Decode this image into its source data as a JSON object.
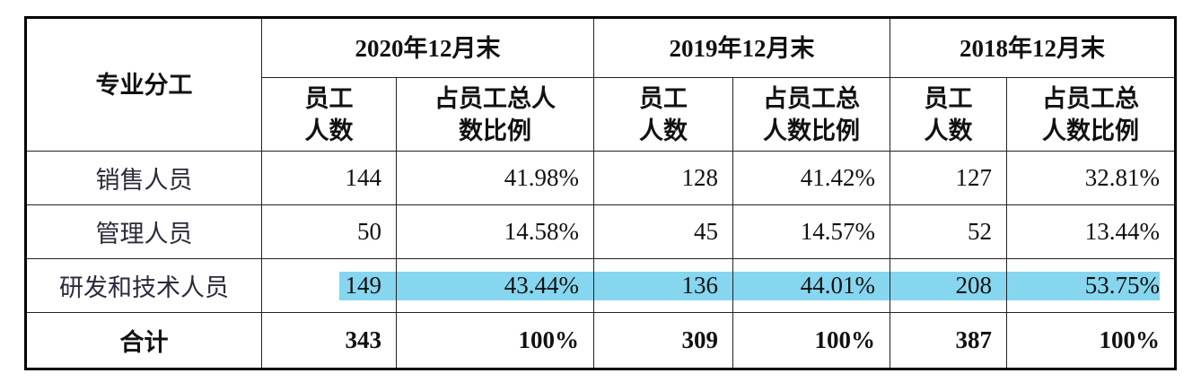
{
  "table": {
    "corner": "专业分工",
    "groups": [
      "2020年12月末",
      "2019年12月末",
      "2018年12月末"
    ],
    "subheaders": [
      [
        "员工",
        "人数"
      ],
      [
        "占员工总人",
        "数比例"
      ],
      [
        "员工",
        "人数"
      ],
      [
        "占员工总",
        "人数比例"
      ],
      [
        "员工",
        "人数"
      ],
      [
        "占员工总",
        "人数比例"
      ]
    ],
    "rows": [
      [
        "销售人员",
        "144",
        "41.98%",
        "128",
        "41.42%",
        "127",
        "32.81%"
      ],
      [
        "管理人员",
        "50",
        "14.58%",
        "45",
        "14.57%",
        "52",
        "13.44%"
      ],
      [
        "研发和技术人员",
        "149",
        "43.44%",
        "136",
        "44.01%",
        "208",
        "53.75%"
      ],
      [
        "合计",
        "343",
        "100%",
        "309",
        "100%",
        "387",
        "100%"
      ]
    ]
  }
}
